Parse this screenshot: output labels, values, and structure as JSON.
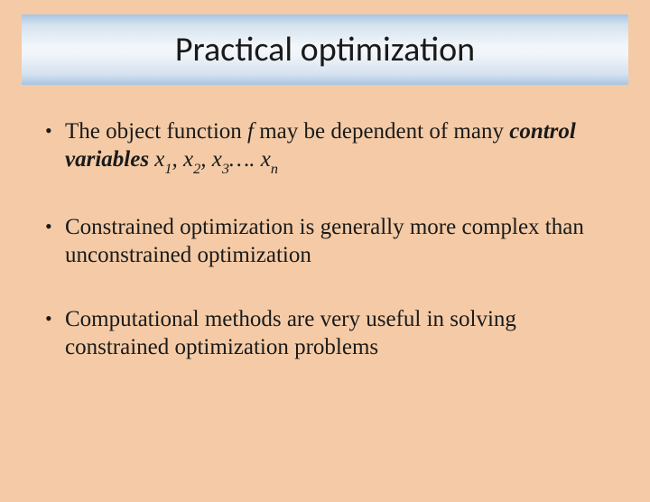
{
  "slide": {
    "background_color": "#f4cba6",
    "title": {
      "text": "Practical optimization",
      "gradient_top": "#a7c5e3",
      "gradient_mid": "#f2f6fa",
      "fontsize": 38,
      "font_family": "Calibri"
    },
    "bullets": [
      {
        "prefix": "The object function ",
        "var_f": "f",
        "mid": " may be dependent of many ",
        "emph": "control variables",
        "seq_space": " ",
        "x1_sym": "x",
        "x1_sub": "1",
        "c1": ", ",
        "x2_sym": "x",
        "x2_sub": "2",
        "c2": ", ",
        "x3_sym": "x",
        "x3_sub": "3",
        "dots": "…. ",
        "xn_sym": "x",
        "xn_sub": "n"
      },
      {
        "text": "Constrained optimization is generally more complex than unconstrained optimization"
      },
      {
        "text": "Computational methods are very useful in solving constrained optimization problems"
      }
    ],
    "body_fontsize": 25,
    "body_font_family": "Times New Roman",
    "text_color": "#1a1a1a"
  }
}
